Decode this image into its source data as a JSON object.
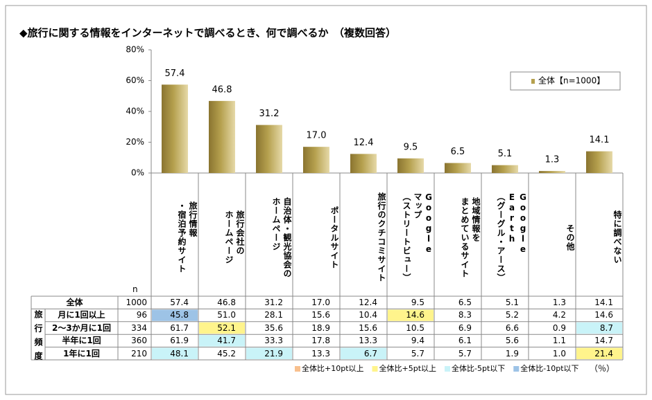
{
  "chart_data": {
    "type": "bar",
    "title": "◆旅行に関する情報をインターネットで調べるとき、何で調べるか　（複数回答）",
    "categories": [
      "旅行情報\n・宿泊予約サイト",
      "旅行会社の\nホームページ",
      "自治体・観光協会の\nホームページ",
      "ポータルサイト",
      "旅行のクチコミサイト",
      "Google\nマップ\n（ストリートビュー）",
      "地域情報を\nまとめているサイト",
      "Google\nEarth\n（グーグル・アース）",
      "その他",
      "特に調べない"
    ],
    "series": [
      {
        "name": "全体【n=1000】",
        "color": "#b5a04e",
        "values": [
          57.4,
          46.8,
          31.2,
          17.0,
          12.4,
          9.5,
          6.5,
          5.1,
          1.3,
          14.1
        ],
        "value_labels": [
          "57.4",
          "46.8",
          "31.2",
          "17.0",
          "12.4",
          "9.5",
          "6.5",
          "5.1",
          "1.3",
          "14.1"
        ]
      }
    ],
    "ylim": [
      0,
      80
    ],
    "yticks": [
      {
        "value": 0,
        "label": "0%"
      },
      {
        "value": 20,
        "label": "20%"
      },
      {
        "value": 40,
        "label": "40%"
      },
      {
        "value": 60,
        "label": "60%"
      },
      {
        "value": 80,
        "label": "80%"
      }
    ],
    "legend": "top-right"
  },
  "table": {
    "n_header": "n",
    "group_label": "旅行頻度",
    "rows": [
      {
        "label": "全体",
        "n": 1000,
        "values": [
          "57.4",
          "46.8",
          "31.2",
          "17.0",
          "12.4",
          "9.5",
          "6.5",
          "5.1",
          "1.3",
          "14.1"
        ],
        "cell_colors": [
          null,
          null,
          null,
          null,
          null,
          null,
          null,
          null,
          null,
          null
        ]
      },
      {
        "label": "月に1回以上",
        "n": 96,
        "values": [
          "45.8",
          "51.0",
          "28.1",
          "15.6",
          "10.4",
          "14.6",
          "8.3",
          "5.2",
          "4.2",
          "14.6"
        ],
        "cell_colors": [
          "#9dc3e6",
          null,
          null,
          null,
          null,
          "#fff48c",
          null,
          null,
          null,
          null
        ]
      },
      {
        "label": "2～3か月に1回",
        "n": 334,
        "values": [
          "61.7",
          "52.1",
          "35.6",
          "18.9",
          "15.6",
          "10.5",
          "6.9",
          "6.6",
          "0.9",
          "8.7"
        ],
        "cell_colors": [
          null,
          "#fff48c",
          null,
          null,
          null,
          null,
          null,
          null,
          null,
          "#c9f3f8"
        ]
      },
      {
        "label": "半年に1回",
        "n": 360,
        "values": [
          "61.9",
          "41.7",
          "33.3",
          "17.8",
          "13.3",
          "9.4",
          "6.1",
          "5.6",
          "1.1",
          "14.7"
        ],
        "cell_colors": [
          null,
          "#c9f3f8",
          null,
          null,
          null,
          null,
          null,
          null,
          null,
          null
        ]
      },
      {
        "label": "1年に1回",
        "n": 210,
        "values": [
          "48.1",
          "45.2",
          "21.9",
          "13.3",
          "6.7",
          "5.7",
          "5.7",
          "1.9",
          "1.0",
          "21.4"
        ],
        "cell_colors": [
          "#c9f3f8",
          null,
          "#c9f3f8",
          null,
          "#c9f3f8",
          null,
          null,
          null,
          null,
          "#fff48c"
        ]
      }
    ],
    "legend": [
      {
        "label": "全体比+10pt以上",
        "color": "#f8c08e"
      },
      {
        "label": "全体比+5pt以上",
        "color": "#fff48c"
      },
      {
        "label": "全体比-5pt以下",
        "color": "#c9f3f8"
      },
      {
        "label": "全体比-10pt以下",
        "color": "#9dc3e6"
      }
    ],
    "unit": "（％）"
  }
}
